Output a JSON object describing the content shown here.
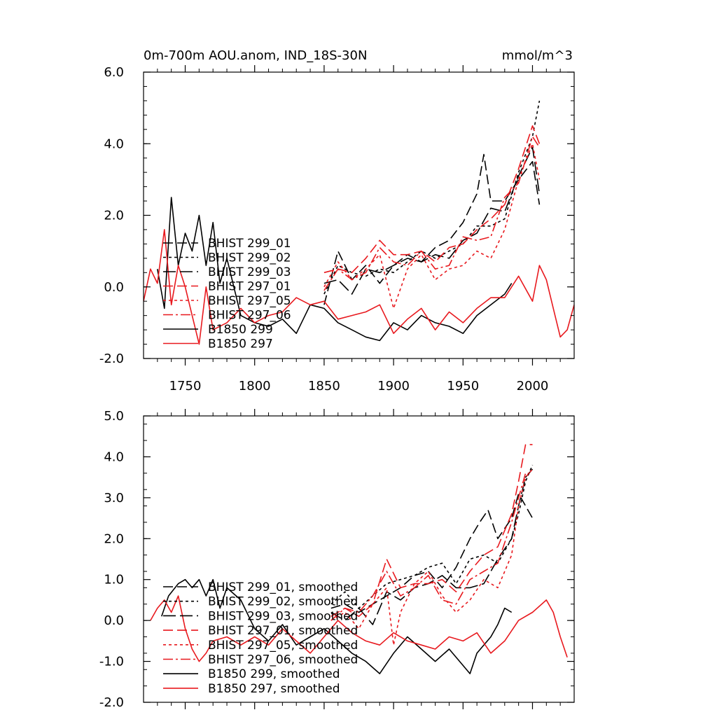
{
  "chart_data": [
    {
      "type": "line",
      "title": "0m-700m AOU.anom, IND_18S-30N",
      "units": "mmol/m^3",
      "xlim": [
        1720,
        2030
      ],
      "ylim": [
        -2.0,
        6.0
      ],
      "x_ticks": [
        1750,
        1800,
        1850,
        1900,
        1950,
        2000
      ],
      "x_tick_labels": [
        "1750",
        "1800",
        "1850",
        "1900",
        "1950",
        "2000"
      ],
      "y_ticks": [
        -2.0,
        0.0,
        2.0,
        4.0,
        6.0
      ],
      "y_tick_labels": [
        "-2.0",
        "0.0",
        "2.0",
        "4.0",
        "6.0"
      ],
      "legend": [
        "BHIST 299_01",
        "BHIST 299_02",
        "BHIST 299_03",
        "BHIST 297_01",
        "BHIST 297_05",
        "BHIST 297_06",
        "B1850 299",
        "B1850 297"
      ],
      "series": [
        {
          "name": "BHIST 299_01",
          "color": "#000000",
          "dash": "14 6",
          "x": [
            1850,
            1860,
            1870,
            1880,
            1890,
            1900,
            1910,
            1920,
            1930,
            1940,
            1950,
            1960,
            1965,
            1970,
            1980,
            1990,
            2000,
            2005
          ],
          "values": [
            -0.5,
            1.0,
            0.2,
            0.6,
            0.1,
            0.6,
            0.9,
            0.7,
            1.1,
            1.3,
            1.8,
            2.6,
            3.7,
            2.4,
            2.4,
            3.0,
            3.5,
            2.3
          ]
        },
        {
          "name": "BHIST 299_02",
          "color": "#000000",
          "dash": "4 4",
          "x": [
            1850,
            1860,
            1870,
            1880,
            1890,
            1900,
            1910,
            1920,
            1930,
            1940,
            1950,
            1960,
            1970,
            1980,
            1990,
            2000,
            2005
          ],
          "values": [
            -0.2,
            0.6,
            0.4,
            0.3,
            0.5,
            0.4,
            0.7,
            1.0,
            0.8,
            1.0,
            1.2,
            1.7,
            1.7,
            1.9,
            3.2,
            4.2,
            5.2
          ]
        },
        {
          "name": "BHIST 299_03",
          "color": "#000000",
          "dash": "18 6",
          "x": [
            1850,
            1860,
            1870,
            1880,
            1890,
            1900,
            1910,
            1920,
            1930,
            1940,
            1950,
            1960,
            1970,
            1980,
            1990,
            2000,
            2005
          ],
          "values": [
            0.1,
            0.2,
            -0.2,
            0.5,
            0.4,
            0.6,
            0.8,
            0.7,
            0.9,
            0.8,
            1.3,
            1.5,
            2.2,
            2.1,
            3.1,
            3.9,
            2.6
          ]
        },
        {
          "name": "BHIST 297_01",
          "color": "#e8191e",
          "dash": "14 6",
          "x": [
            1850,
            1860,
            1870,
            1880,
            1890,
            1900,
            1910,
            1920,
            1930,
            1940,
            1950,
            1960,
            1970,
            1980,
            1990,
            2000,
            2005
          ],
          "values": [
            0.4,
            0.5,
            0.4,
            0.8,
            1.3,
            0.9,
            0.9,
            1.0,
            0.7,
            1.1,
            1.2,
            1.6,
            1.9,
            2.3,
            3.3,
            4.5,
            4.0
          ]
        },
        {
          "name": "BHIST 297_05",
          "color": "#e8191e",
          "dash": "4 4",
          "x": [
            1850,
            1860,
            1870,
            1880,
            1890,
            1900,
            1910,
            1920,
            1930,
            1940,
            1950,
            1960,
            1970,
            1980,
            1990,
            2000,
            2005
          ],
          "values": [
            0.0,
            0.7,
            0.2,
            0.5,
            0.9,
            -0.6,
            0.5,
            0.9,
            0.2,
            0.5,
            0.6,
            1.0,
            0.8,
            1.6,
            3.0,
            4.0,
            3.0
          ]
        },
        {
          "name": "BHIST 297_06",
          "color": "#e8191e",
          "dash": "14 4 3 4",
          "x": [
            1850,
            1860,
            1870,
            1880,
            1890,
            1900,
            1910,
            1920,
            1930,
            1940,
            1950,
            1960,
            1970,
            1980,
            1990,
            2000,
            2005
          ],
          "values": [
            -0.1,
            0.5,
            0.2,
            0.4,
            1.1,
            0.7,
            0.6,
            1.0,
            0.5,
            0.6,
            1.4,
            1.3,
            1.4,
            2.5,
            2.9,
            4.2,
            3.9
          ]
        },
        {
          "name": "B1850 299",
          "color": "#000000",
          "dash": "",
          "x": [
            1730,
            1735,
            1740,
            1745,
            1750,
            1755,
            1760,
            1765,
            1770,
            1775,
            1780,
            1790,
            1800,
            1810,
            1820,
            1830,
            1840,
            1850,
            1860,
            1870,
            1880,
            1890,
            1900,
            1910,
            1920,
            1930,
            1940,
            1950,
            1960,
            1970,
            1980,
            1985
          ],
          "values": [
            0.5,
            -0.6,
            2.5,
            0.6,
            1.5,
            1.0,
            2.0,
            0.6,
            1.8,
            0.1,
            0.8,
            -0.8,
            -1.0,
            -1.1,
            -0.9,
            -1.3,
            -0.5,
            -0.6,
            -1.0,
            -1.2,
            -1.4,
            -1.5,
            -1.0,
            -1.2,
            -0.8,
            -1.0,
            -1.1,
            -1.3,
            -0.8,
            -0.5,
            -0.2,
            0.1
          ]
        },
        {
          "name": "B1850 297",
          "color": "#e8191e",
          "dash": "",
          "x": [
            1720,
            1725,
            1730,
            1735,
            1740,
            1745,
            1750,
            1755,
            1760,
            1765,
            1770,
            1780,
            1790,
            1800,
            1810,
            1820,
            1830,
            1840,
            1850,
            1860,
            1870,
            1880,
            1890,
            1900,
            1910,
            1920,
            1930,
            1940,
            1950,
            1960,
            1970,
            1980,
            1990,
            2000,
            2005,
            2010,
            2015,
            2020,
            2025,
            2030
          ],
          "values": [
            -0.4,
            0.5,
            0.1,
            1.6,
            -0.5,
            0.6,
            0.0,
            -0.8,
            -1.6,
            0.0,
            -1.2,
            -1.0,
            -0.6,
            -1.0,
            -0.8,
            -0.7,
            -0.3,
            -0.5,
            -0.4,
            -0.9,
            -0.8,
            -0.7,
            -0.5,
            -1.3,
            -0.9,
            -0.6,
            -1.2,
            -0.7,
            -1.0,
            -0.6,
            -0.3,
            -0.3,
            0.3,
            -0.4,
            0.6,
            0.2,
            -0.6,
            -1.4,
            -1.2,
            -0.5
          ]
        }
      ]
    },
    {
      "type": "line",
      "title": "",
      "xlim": [
        1720,
        2030
      ],
      "ylim": [
        -2.0,
        5.0
      ],
      "x_ticks": [
        1750,
        1800,
        1850,
        1900,
        1950,
        2000
      ],
      "x_tick_labels": [],
      "y_ticks": [
        -2.0,
        -1.0,
        0.0,
        1.0,
        2.0,
        3.0,
        4.0,
        5.0
      ],
      "y_tick_labels": [
        "-2.0",
        "-1.0",
        "0.0",
        "1.0",
        "2.0",
        "3.0",
        "4.0",
        "5.0"
      ],
      "legend": [
        "BHIST 299_01, smoothed",
        "BHIST 299_02, smoothed",
        "BHIST 299_03, smoothed",
        "BHIST 297_01, smoothed",
        "BHIST 297_05, smoothed",
        "BHIST 297_06, smoothed",
        "B1850 299, smoothed",
        "B1850 297, smoothed"
      ],
      "series": [
        {
          "name": "BHIST 299_01, smoothed",
          "color": "#000000",
          "dash": "14 6",
          "x": [
            1855,
            1865,
            1875,
            1885,
            1895,
            1905,
            1915,
            1925,
            1935,
            1945,
            1955,
            1962,
            1968,
            1975,
            1985,
            1990,
            1995,
            2000
          ],
          "values": [
            0.3,
            0.4,
            0.2,
            0.4,
            0.6,
            0.8,
            1.1,
            1.2,
            0.8,
            1.3,
            2.0,
            2.4,
            2.7,
            2.0,
            2.5,
            3.1,
            2.8,
            2.5
          ]
        },
        {
          "name": "BHIST 299_02, smoothed",
          "color": "#000000",
          "dash": "4 4",
          "x": [
            1855,
            1865,
            1875,
            1885,
            1895,
            1905,
            1915,
            1925,
            1935,
            1945,
            1955,
            1965,
            1975,
            1985,
            1990,
            1995,
            2000
          ],
          "values": [
            0.4,
            0.7,
            0.3,
            0.6,
            0.9,
            1.0,
            1.1,
            1.3,
            1.4,
            0.9,
            1.5,
            1.6,
            1.4,
            2.0,
            2.6,
            3.4,
            3.8
          ]
        },
        {
          "name": "BHIST 299_03, smoothed",
          "color": "#000000",
          "dash": "18 6",
          "x": [
            1855,
            1865,
            1875,
            1885,
            1895,
            1905,
            1915,
            1925,
            1935,
            1945,
            1955,
            1965,
            1975,
            1985,
            1990,
            1995,
            2000
          ],
          "values": [
            0.2,
            0.0,
            0.3,
            -0.1,
            0.7,
            0.5,
            0.8,
            0.9,
            1.1,
            0.8,
            0.8,
            0.9,
            1.5,
            2.0,
            2.8,
            3.5,
            3.7
          ]
        },
        {
          "name": "BHIST 297_01, smoothed",
          "color": "#e8191e",
          "dash": "14 6",
          "x": [
            1855,
            1865,
            1875,
            1885,
            1895,
            1905,
            1915,
            1925,
            1935,
            1945,
            1955,
            1965,
            1975,
            1985,
            1990,
            1995,
            2000
          ],
          "values": [
            0.1,
            0.3,
            0.1,
            0.4,
            1.5,
            0.8,
            0.9,
            0.9,
            1.0,
            0.7,
            1.2,
            1.6,
            1.8,
            2.6,
            3.4,
            4.3,
            4.3
          ]
        },
        {
          "name": "BHIST 297_05, smoothed",
          "color": "#e8191e",
          "dash": "4 4",
          "x": [
            1855,
            1865,
            1875,
            1885,
            1895,
            1900,
            1905,
            1915,
            1925,
            1935,
            1945,
            1955,
            1965,
            1975,
            1985,
            1990,
            1995,
            2000
          ],
          "values": [
            0.0,
            0.2,
            -0.2,
            0.4,
            0.8,
            -0.6,
            0.2,
            0.9,
            1.2,
            0.6,
            0.2,
            0.5,
            1.0,
            0.8,
            1.6,
            2.8,
            3.5,
            3.7
          ]
        },
        {
          "name": "BHIST 297_06, smoothed",
          "color": "#e8191e",
          "dash": "14 4 3 4",
          "x": [
            1855,
            1865,
            1875,
            1885,
            1895,
            1905,
            1915,
            1925,
            1935,
            1945,
            1955,
            1965,
            1975,
            1985,
            1990,
            1995,
            2000
          ],
          "values": [
            0.0,
            0.3,
            0.2,
            0.6,
            1.2,
            0.6,
            0.8,
            1.1,
            0.5,
            0.4,
            1.0,
            1.2,
            1.4,
            2.4,
            3.0,
            3.6,
            3.6
          ]
        },
        {
          "name": "B1850 299, smoothed",
          "color": "#000000",
          "dash": "",
          "x": [
            1733,
            1738,
            1745,
            1750,
            1755,
            1760,
            1765,
            1770,
            1775,
            1780,
            1790,
            1800,
            1810,
            1820,
            1830,
            1840,
            1850,
            1860,
            1870,
            1880,
            1890,
            1900,
            1910,
            1920,
            1930,
            1940,
            1950,
            1955,
            1960,
            1970,
            1975,
            1980,
            1985
          ],
          "values": [
            0.1,
            0.6,
            0.9,
            1.0,
            0.8,
            1.0,
            0.6,
            1.0,
            0.3,
            0.8,
            0.5,
            -0.2,
            -0.5,
            -0.1,
            -0.6,
            -0.4,
            -0.2,
            -0.5,
            -0.8,
            -1.0,
            -1.3,
            -0.8,
            -0.4,
            -0.7,
            -1.0,
            -0.7,
            -1.1,
            -1.3,
            -0.8,
            -0.4,
            -0.1,
            0.3,
            0.2
          ]
        },
        {
          "name": "B1850 297, smoothed",
          "color": "#e8191e",
          "dash": "",
          "x": [
            1725,
            1730,
            1735,
            1740,
            1745,
            1750,
            1755,
            1760,
            1765,
            1770,
            1780,
            1790,
            1800,
            1810,
            1820,
            1830,
            1840,
            1850,
            1860,
            1870,
            1880,
            1890,
            1900,
            1910,
            1920,
            1930,
            1940,
            1950,
            1960,
            1970,
            1980,
            1990,
            2000,
            2010,
            2015,
            2020,
            2025
          ],
          "values": [
            0.0,
            0.3,
            0.5,
            0.2,
            0.6,
            -0.2,
            -0.7,
            -1.0,
            -0.8,
            -0.5,
            -0.4,
            -0.6,
            -0.4,
            -0.6,
            -0.2,
            -0.5,
            -0.8,
            -0.4,
            0.0,
            -0.3,
            -0.5,
            -0.6,
            -0.3,
            -0.5,
            -0.6,
            -0.7,
            -0.4,
            -0.5,
            -0.3,
            -0.8,
            -0.5,
            0.0,
            0.2,
            0.5,
            0.2,
            -0.4,
            -0.9
          ]
        }
      ]
    }
  ]
}
